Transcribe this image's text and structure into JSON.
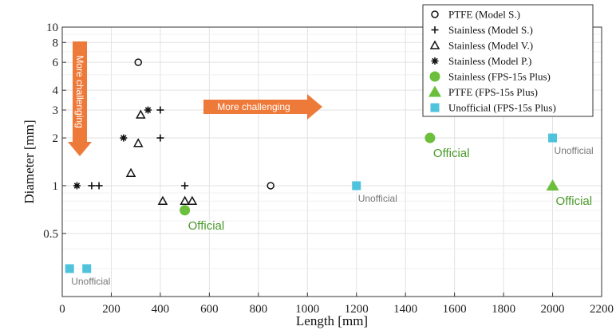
{
  "chart_data": {
    "type": "scatter",
    "xlabel": "Length [mm]",
    "ylabel": "Diameter [mm]",
    "xlim": [
      0,
      2200
    ],
    "ylim": [
      0.2,
      10
    ],
    "yscale": "log",
    "grid": true,
    "legend_position": "top-right",
    "xticks": [
      0,
      200,
      400,
      600,
      800,
      1000,
      1200,
      1400,
      1600,
      1800,
      2000,
      2200
    ],
    "yticks": [
      {
        "value": 0.5,
        "label": "0.5"
      },
      {
        "value": 1,
        "label": "1"
      },
      {
        "value": 2,
        "label": "2"
      },
      {
        "value": 3,
        "label": "3"
      },
      {
        "value": 4,
        "label": "4"
      },
      {
        "value": 6,
        "label": "6"
      },
      {
        "value": 8,
        "label": "8"
      },
      {
        "value": 10,
        "label": "10"
      }
    ],
    "series": [
      {
        "name": "PTFE (Model S.)",
        "marker": "open-circle",
        "color": "#111111",
        "points": [
          [
            310,
            6
          ],
          [
            850,
            1
          ]
        ]
      },
      {
        "name": "Stainless (Model S.)",
        "marker": "plus",
        "color": "#111111",
        "points": [
          [
            120,
            1
          ],
          [
            150,
            1
          ],
          [
            400,
            3
          ],
          [
            400,
            2
          ],
          [
            500,
            1
          ]
        ]
      },
      {
        "name": "Stainless (Model V.)",
        "marker": "open-triangle",
        "color": "#111111",
        "points": [
          [
            320,
            2.8
          ],
          [
            310,
            1.85
          ],
          [
            280,
            1.2
          ],
          [
            410,
            0.8
          ],
          [
            500,
            0.8
          ],
          [
            530,
            0.8
          ]
        ]
      },
      {
        "name": "Stainless (Model P.)",
        "marker": "asterisk",
        "color": "#111111",
        "points": [
          [
            60,
            1
          ],
          [
            250,
            2
          ],
          [
            350,
            3
          ]
        ]
      },
      {
        "name": "Stainless (FPS-15s Plus)",
        "marker": "filled-circle",
        "color": "#6cbf3c",
        "points": [
          [
            500,
            0.7
          ],
          [
            1500,
            2
          ]
        ]
      },
      {
        "name": "PTFE (FPS-15s Plus)",
        "marker": "filled-triangle",
        "color": "#6cbf3c",
        "points": [
          [
            2000,
            1
          ]
        ]
      },
      {
        "name": "Unofficial (FPS-15s Plus)",
        "marker": "filled-square",
        "color": "#4fc3dc",
        "points": [
          [
            30,
            0.3
          ],
          [
            100,
            0.3
          ],
          [
            1200,
            1
          ],
          [
            2000,
            2
          ]
        ]
      }
    ],
    "annotations": [
      {
        "text": "Official",
        "x": 500,
        "y": 0.7,
        "color": "#4a9a2a",
        "style": "green"
      },
      {
        "text": "Official",
        "x": 1500,
        "y": 2,
        "color": "#4a9a2a",
        "style": "green"
      },
      {
        "text": "Official",
        "x": 2000,
        "y": 1,
        "color": "#4a9a2a",
        "style": "green"
      },
      {
        "text": "Unofficial",
        "x": 30,
        "y": 0.3,
        "color": "#777777",
        "style": "gray"
      },
      {
        "text": "Unofficial",
        "x": 1200,
        "y": 1,
        "color": "#777777",
        "style": "gray"
      },
      {
        "text": "Unofficial",
        "x": 2000,
        "y": 2,
        "color": "#777777",
        "style": "gray"
      }
    ],
    "arrows": [
      {
        "text": "More challenging",
        "direction": "right",
        "color": "#ee7a3a"
      },
      {
        "text": "More challenging",
        "direction": "down",
        "color": "#ee7a3a"
      }
    ]
  }
}
